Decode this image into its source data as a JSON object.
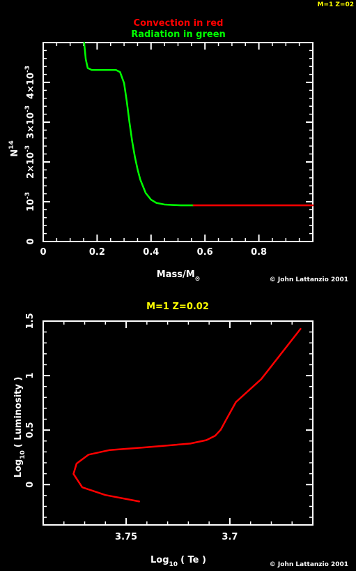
{
  "header": {
    "corner_tag": "M=1 Z=02",
    "corner_tag_color": "#ffff00"
  },
  "top_chart": {
    "legend": {
      "convection": "Convection in red",
      "radiation": "Radiation in green",
      "convection_color": "#ff0000",
      "radiation_color": "#00ff00"
    },
    "ylabel_main": "N",
    "ylabel_sup": "14",
    "xlabel_main": "Mass/M",
    "xlabel_sub": "⊙",
    "credit": "© John Lattanzio 2001"
  },
  "bottom_chart": {
    "title": "M=1 Z=0.02",
    "title_color": "#ffff00",
    "ylabel_pre": "Log",
    "ylabel_sub": "10",
    "ylabel_post": "( Luminosity )",
    "xlabel_pre": "Log",
    "xlabel_sub": "10",
    "xlabel_post": "( Te )",
    "credit": "© John Lattanzio 2001"
  },
  "chart_data": [
    {
      "type": "line",
      "title": "",
      "xlabel": "Mass/M⊙",
      "ylabel": "N14",
      "xlim": [
        0,
        1
      ],
      "ylim": [
        0,
        0.005
      ],
      "x_ticks": [
        {
          "value": 0,
          "label": "0"
        },
        {
          "value": 0.2,
          "label": "0.2"
        },
        {
          "value": 0.4,
          "label": "0.4"
        },
        {
          "value": 0.6,
          "label": "0.6"
        },
        {
          "value": 0.8,
          "label": "0.8"
        }
      ],
      "y_ticks": [
        {
          "value": 0,
          "base": "0",
          "exp": ""
        },
        {
          "value": 0.001,
          "base": "10",
          "exp": "-3"
        },
        {
          "value": 0.002,
          "base": "2×10",
          "exp": "-3"
        },
        {
          "value": 0.003,
          "base": "3×10",
          "exp": "-3"
        },
        {
          "value": 0.004,
          "base": "4×10",
          "exp": "-3"
        }
      ],
      "series": [
        {
          "color": "#00ff00",
          "x": [
            0.152,
            0.158,
            0.165,
            0.18,
            0.2,
            0.24,
            0.27,
            0.285,
            0.3,
            0.31,
            0.32,
            0.33,
            0.34,
            0.35,
            0.36,
            0.38,
            0.4,
            0.42,
            0.45,
            0.48,
            0.51,
            0.54,
            0.558
          ],
          "y": [
            0.005,
            0.00458,
            0.00436,
            0.00431,
            0.00431,
            0.00431,
            0.00431,
            0.00426,
            0.00398,
            0.00352,
            0.003,
            0.00252,
            0.00213,
            0.00182,
            0.00156,
            0.00122,
            0.00105,
            0.00097,
            0.00093,
            0.00092,
            0.00091,
            0.00091,
            0.00091
          ]
        },
        {
          "color": "#ff0000",
          "x": [
            0.558,
            0.75,
            1.0
          ],
          "y": [
            0.00091,
            0.00091,
            0.00091
          ]
        }
      ]
    },
    {
      "type": "line",
      "title": "M=1 Z=0.02",
      "xlabel": "Log10 ( Te )",
      "ylabel": "Log10 ( Luminosity )",
      "x_reversed": true,
      "xlim": [
        3.79,
        3.66
      ],
      "ylim": [
        -0.37,
        1.5
      ],
      "x_ticks": [
        {
          "value": 3.75,
          "label": "3.75"
        },
        {
          "value": 3.7,
          "label": "3.7"
        }
      ],
      "y_ticks": [
        {
          "value": 0,
          "label": "0"
        },
        {
          "value": 0.5,
          "label": "0.5"
        },
        {
          "value": 1,
          "label": "1"
        },
        {
          "value": 1.5,
          "label": "1.5"
        }
      ],
      "series": [
        {
          "color": "#ff0000",
          "x": [
            3.7437,
            3.76,
            3.7712,
            3.7754,
            3.7739,
            3.7681,
            3.7579,
            3.7403,
            3.719,
            3.7113,
            3.7071,
            3.7044,
            3.7016,
            3.6971,
            3.6849,
            3.6659
          ],
          "y": [
            -0.155,
            -0.096,
            -0.025,
            0.098,
            0.193,
            0.275,
            0.317,
            0.342,
            0.377,
            0.408,
            0.448,
            0.503,
            0.602,
            0.757,
            0.967,
            1.429
          ]
        }
      ]
    }
  ]
}
